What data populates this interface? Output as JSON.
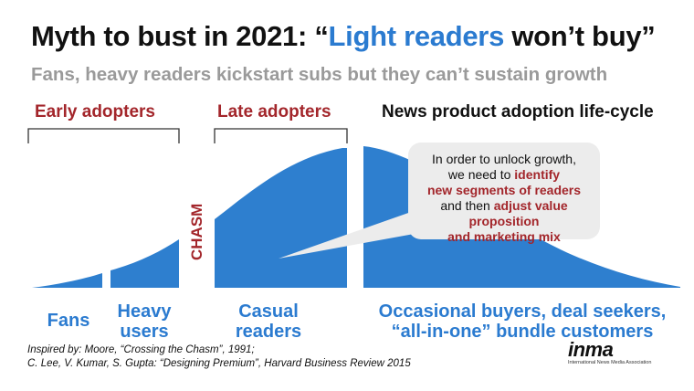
{
  "title": {
    "prefix": "Myth to bust in 2021: “",
    "accent": "Light readers",
    "suffix": " won’t buy”"
  },
  "subtitle": "Fans, heavy readers kickstart subs but they can’t sustain growth",
  "headings": {
    "early": "Early adopters",
    "late": "Late adopters",
    "lifecycle": "News product adoption life-cycle"
  },
  "chasm_label": "CHASM",
  "segments": {
    "fans": "Fans",
    "heavy_line1": "Heavy",
    "heavy_line2": "users",
    "casual_line1": "Casual",
    "casual_line2": "readers",
    "occasional_line1": "Occasional buyers, deal seekers,",
    "occasional_line2": "“all-in-one” bundle customers"
  },
  "callout": {
    "line1": "In order to unlock growth,",
    "line2_pre": "we need to ",
    "line2_hl": "identify",
    "line3_hl": "new segments of readers",
    "line4_pre": "and then ",
    "line4_hl": "adjust value",
    "line5_hl": "proposition",
    "line6_hl": "and marketing mix"
  },
  "footnote": {
    "line1": "Inspired by: Moore, “Crossing the Chasm”, 1991;",
    "line2": "C. Lee, V. Kumar, S. Gupta: “Designing Premium”, Harvard Business Review 2015"
  },
  "logo": {
    "word": "inma",
    "tagline": "International News Media Association"
  },
  "colors": {
    "curve": "#2e7fcf",
    "accent": "#2b7bd0",
    "red": "#a3262b",
    "subtitle": "#9a9a9a",
    "callout_bg": "#ececec"
  }
}
